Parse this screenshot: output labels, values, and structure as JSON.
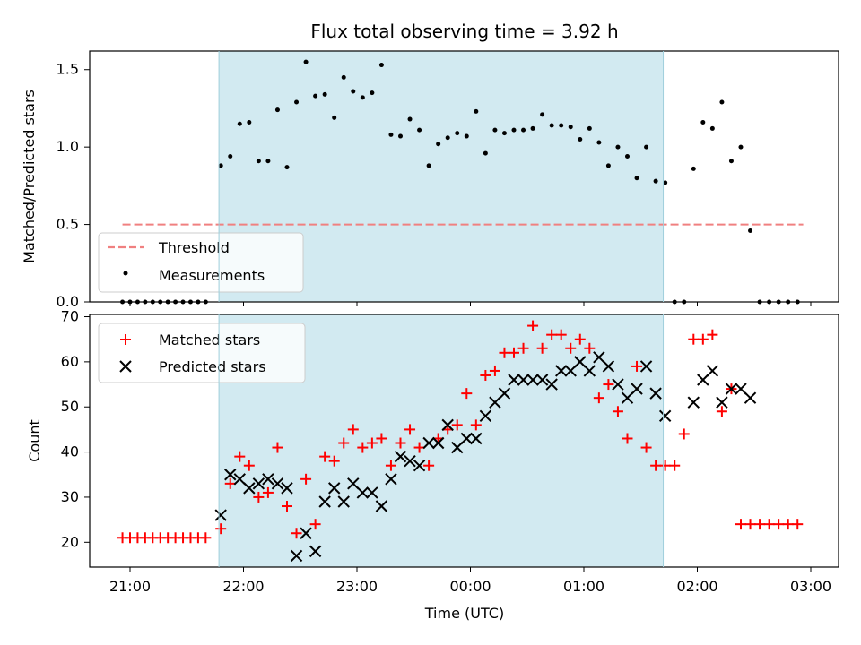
{
  "chart_data": [
    {
      "type": "scatter",
      "title": "Flux total observing time = 3.92 h",
      "ylabel": "Matched/Predicted stars",
      "xlabel": "",
      "ylim": [
        0,
        1.62
      ],
      "x_start": "20:50",
      "yticks": [
        0.0,
        0.5,
        1.0,
        1.5
      ],
      "ytick_labels": [
        "0.0",
        "0.5",
        "1.0",
        "1.5"
      ],
      "shaded_region": {
        "x": [
          "21:47",
          "01:42"
        ],
        "color": "#add8e6"
      },
      "legend": {
        "placement": "lower-left",
        "entries": [
          "Threshold",
          "Measurements"
        ]
      },
      "series": [
        {
          "name": "Threshold",
          "style": "dashed-line",
          "color": "#f08080",
          "x": [
            "20:56",
            "02:56"
          ],
          "y": [
            0.5,
            0.5
          ]
        },
        {
          "name": "Measurements",
          "style": "dot",
          "color": "#000000",
          "x": [
            "20:56",
            "21:00",
            "21:04",
            "21:08",
            "21:12",
            "21:16",
            "21:20",
            "21:24",
            "21:28",
            "21:32",
            "21:36",
            "21:40",
            "21:48",
            "21:53",
            "21:58",
            "22:03",
            "22:08",
            "22:13",
            "22:18",
            "22:23",
            "22:28",
            "22:33",
            "22:38",
            "22:43",
            "22:48",
            "22:53",
            "22:58",
            "23:03",
            "23:08",
            "23:13",
            "23:18",
            "23:23",
            "23:28",
            "23:33",
            "23:38",
            "23:43",
            "23:48",
            "23:53",
            "23:58",
            "00:03",
            "00:08",
            "00:13",
            "00:18",
            "00:23",
            "00:28",
            "00:33",
            "00:38",
            "00:43",
            "00:48",
            "00:53",
            "00:58",
            "01:03",
            "01:08",
            "01:13",
            "01:18",
            "01:23",
            "01:28",
            "01:33",
            "01:38",
            "01:43",
            "01:48",
            "01:53",
            "01:58",
            "02:03",
            "02:08",
            "02:13",
            "02:18",
            "02:23",
            "02:28",
            "02:33",
            "02:38",
            "02:43",
            "02:48",
            "02:53"
          ],
          "y": [
            0,
            0,
            0,
            0,
            0,
            0,
            0,
            0,
            0,
            0,
            0,
            0,
            0.88,
            0.94,
            1.15,
            1.16,
            0.91,
            0.91,
            1.24,
            0.87,
            1.29,
            1.55,
            1.33,
            1.34,
            1.19,
            1.45,
            1.36,
            1.32,
            1.35,
            1.53,
            1.08,
            1.07,
            1.18,
            1.11,
            0.88,
            1.02,
            1.06,
            1.09,
            1.07,
            1.23,
            0.96,
            1.11,
            1.09,
            1.11,
            1.11,
            1.12,
            1.21,
            1.14,
            1.14,
            1.13,
            1.05,
            1.12,
            1.03,
            0.88,
            1.0,
            0.94,
            0.8,
            1.0,
            0.78,
            0.77,
            0,
            0,
            0.86,
            1.16,
            1.12,
            1.29,
            0.91,
            1.0,
            0.46,
            0,
            0,
            0,
            0,
            0
          ]
        }
      ]
    },
    {
      "type": "scatter",
      "title": "",
      "ylabel": "Count",
      "xlabel": "Time (UTC)",
      "ylim": [
        14.5,
        70.5
      ],
      "x_start": "20:50",
      "xticks": [
        "21:00",
        "22:00",
        "23:00",
        "00:00",
        "01:00",
        "02:00",
        "03:00"
      ],
      "yticks": [
        20,
        30,
        40,
        50,
        60,
        70
      ],
      "ytick_labels": [
        "20",
        "30",
        "40",
        "50",
        "60",
        "70"
      ],
      "shaded_region": {
        "x": [
          "21:47",
          "01:42"
        ],
        "color": "#add8e6"
      },
      "legend": {
        "placement": "upper-left",
        "entries": [
          "Matched stars",
          "Predicted stars"
        ]
      },
      "series": [
        {
          "name": "Matched stars",
          "style": "plus",
          "color": "#ff0000",
          "x": [
            "20:56",
            "21:00",
            "21:04",
            "21:08",
            "21:12",
            "21:16",
            "21:20",
            "21:24",
            "21:28",
            "21:32",
            "21:36",
            "21:40",
            "21:48",
            "21:53",
            "21:58",
            "22:03",
            "22:08",
            "22:13",
            "22:18",
            "22:23",
            "22:28",
            "22:33",
            "22:38",
            "22:43",
            "22:48",
            "22:53",
            "22:58",
            "23:03",
            "23:08",
            "23:13",
            "23:18",
            "23:23",
            "23:28",
            "23:33",
            "23:38",
            "23:43",
            "23:48",
            "23:53",
            "23:58",
            "00:03",
            "00:08",
            "00:13",
            "00:18",
            "00:23",
            "00:28",
            "00:33",
            "00:38",
            "00:43",
            "00:48",
            "00:53",
            "00:58",
            "01:03",
            "01:08",
            "01:13",
            "01:18",
            "01:23",
            "01:28",
            "01:33",
            "01:38",
            "01:43",
            "01:48",
            "01:53",
            "01:58",
            "02:03",
            "02:08",
            "02:13",
            "02:18",
            "02:23",
            "02:28",
            "02:33",
            "02:38",
            "02:43",
            "02:48",
            "02:53"
          ],
          "y": [
            21,
            21,
            21,
            21,
            21,
            21,
            21,
            21,
            21,
            21,
            21,
            21,
            23,
            33,
            39,
            37,
            30,
            31,
            41,
            28,
            22,
            34,
            24,
            39,
            38,
            42,
            45,
            41,
            42,
            43,
            37,
            42,
            45,
            41,
            37,
            43,
            45,
            46,
            53,
            46,
            57,
            58,
            62,
            62,
            63,
            68,
            63,
            66,
            66,
            63,
            65,
            63,
            52,
            55,
            49,
            43,
            59,
            41,
            37,
            37,
            37,
            44,
            65,
            65,
            66,
            49,
            54,
            24,
            24,
            24,
            24,
            24,
            24,
            24
          ]
        },
        {
          "name": "Predicted stars",
          "style": "cross",
          "color": "#000000",
          "x": [
            "21:48",
            "21:53",
            "21:58",
            "22:03",
            "22:08",
            "22:13",
            "22:18",
            "22:23",
            "22:28",
            "22:33",
            "22:38",
            "22:43",
            "22:48",
            "22:53",
            "22:58",
            "23:03",
            "23:08",
            "23:13",
            "23:18",
            "23:23",
            "23:28",
            "23:33",
            "23:38",
            "23:43",
            "23:48",
            "23:53",
            "23:58",
            "00:03",
            "00:08",
            "00:13",
            "00:18",
            "00:23",
            "00:28",
            "00:33",
            "00:38",
            "00:43",
            "00:48",
            "00:53",
            "00:58",
            "01:03",
            "01:08",
            "01:13",
            "01:18",
            "01:23",
            "01:28",
            "01:33",
            "01:38",
            "01:43",
            "01:53",
            "01:58",
            "02:03",
            "02:08",
            "02:13",
            "02:18",
            "02:23",
            "02:28",
            "02:33"
          ],
          "y": [
            26,
            35,
            34,
            32,
            33,
            34,
            33,
            32,
            17,
            22,
            18,
            29,
            32,
            29,
            33,
            31,
            31,
            28,
            34,
            39,
            38,
            37,
            42,
            42,
            46,
            41,
            43,
            43,
            48,
            51,
            53,
            56,
            56,
            56,
            56,
            55,
            58,
            58,
            60,
            58,
            61,
            59,
            55,
            52,
            54,
            59,
            53,
            48,
            null,
            51,
            56,
            58,
            51,
            54,
            54,
            52,
            null
          ]
        }
      ]
    }
  ]
}
